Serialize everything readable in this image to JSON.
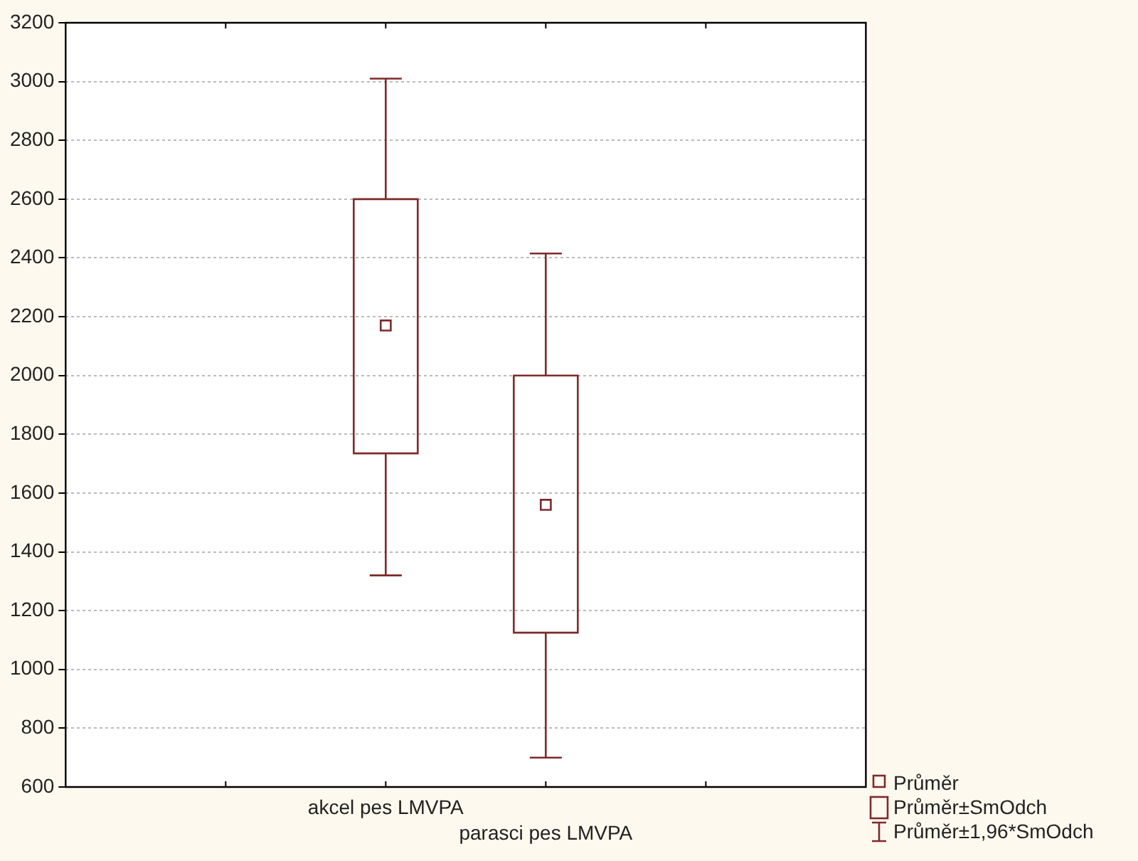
{
  "chart_data": {
    "type": "box",
    "categories": [
      "akcel pes LMVPA",
      "parasci pes LMVPA"
    ],
    "color": "#7f2a2a",
    "boxes": [
      {
        "low": 1320,
        "q1": 1735,
        "q3": 2600,
        "high": 3010,
        "mean": 2170
      },
      {
        "low": 700,
        "q1": 1125,
        "q3": 2000,
        "high": 2415,
        "mean": 1560
      }
    ],
    "ylim": [
      600,
      3200
    ],
    "yticks": [
      600,
      800,
      1000,
      1200,
      1400,
      1600,
      1800,
      2000,
      2200,
      2400,
      2600,
      2800,
      3000,
      3200
    ],
    "grid": "y",
    "marker": "square",
    "annotations": [
      "Průměr",
      "Průměr±SmOdch",
      "Průměr±1,96*SmOdch"
    ]
  }
}
